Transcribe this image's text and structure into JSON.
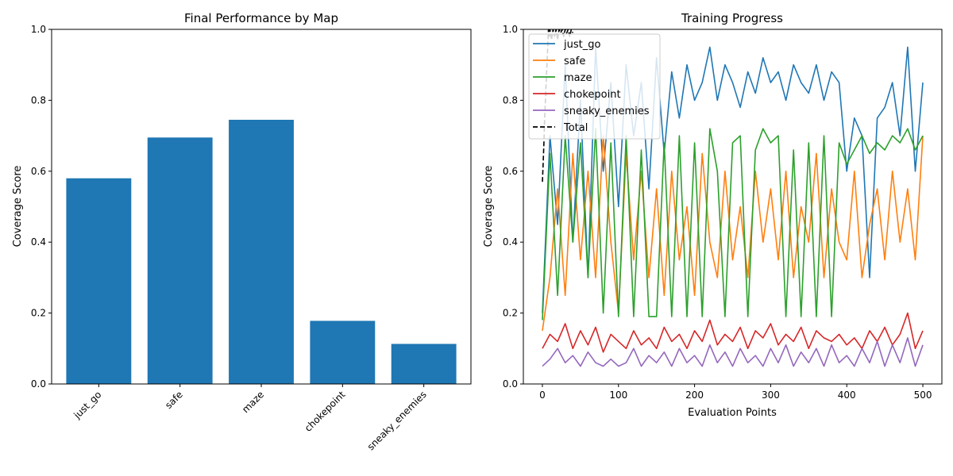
{
  "chart_data": [
    {
      "type": "bar",
      "title": "Final Performance by Map",
      "xlabel": "",
      "ylabel": "Coverage Score",
      "categories": [
        "just_go",
        "safe",
        "maze",
        "chokepoint",
        "sneaky_enemies"
      ],
      "values": [
        0.58,
        0.695,
        0.745,
        0.178,
        0.113
      ],
      "ylim": [
        0,
        1.0
      ],
      "yticks": [
        "0.0",
        "0.2",
        "0.4",
        "0.6",
        "0.8",
        "1.0"
      ],
      "bar_color": "#1f77b4",
      "grid": false
    },
    {
      "type": "line",
      "title": "Training Progress",
      "xlabel": "Evaluation Points",
      "ylabel": "Coverage Score",
      "xlim": [
        -25,
        525
      ],
      "ylim": [
        0,
        1.0
      ],
      "xticks": [
        "0",
        "100",
        "200",
        "300",
        "400",
        "500"
      ],
      "yticks": [
        "0.0",
        "0.2",
        "0.4",
        "0.6",
        "0.8",
        "1.0"
      ],
      "legend_position": "top-left",
      "grid": false,
      "series": [
        {
          "name": "just_go",
          "color": "#1f77b4",
          "style": "solid",
          "x": [
            0,
            10,
            20,
            30,
            40,
            50,
            60,
            70,
            80,
            90,
            100,
            110,
            120,
            130,
            140,
            150,
            160,
            170,
            180,
            190,
            200,
            210,
            220,
            230,
            240,
            250,
            260,
            270,
            280,
            290,
            300,
            310,
            320,
            330,
            340,
            350,
            360,
            370,
            380,
            390,
            400,
            410,
            420,
            430,
            440,
            450,
            460,
            470,
            480,
            490,
            500
          ],
          "y": [
            0.2,
            0.7,
            0.45,
            0.9,
            0.4,
            0.8,
            0.3,
            0.95,
            0.6,
            0.85,
            0.5,
            0.9,
            0.7,
            0.85,
            0.55,
            0.92,
            0.65,
            0.88,
            0.75,
            0.9,
            0.8,
            0.85,
            0.95,
            0.8,
            0.9,
            0.85,
            0.78,
            0.88,
            0.82,
            0.92,
            0.85,
            0.88,
            0.8,
            0.9,
            0.85,
            0.82,
            0.9,
            0.8,
            0.88,
            0.85,
            0.6,
            0.75,
            0.7,
            0.3,
            0.75,
            0.78,
            0.85,
            0.7,
            0.95,
            0.6,
            0.85
          ]
        },
        {
          "name": "safe",
          "color": "#ff7f0e",
          "style": "solid",
          "x": [
            0,
            10,
            20,
            30,
            40,
            50,
            60,
            70,
            80,
            90,
            100,
            110,
            120,
            130,
            140,
            150,
            160,
            170,
            180,
            190,
            200,
            210,
            220,
            230,
            240,
            250,
            260,
            270,
            280,
            290,
            300,
            310,
            320,
            330,
            340,
            350,
            360,
            370,
            380,
            390,
            400,
            410,
            420,
            430,
            440,
            450,
            460,
            470,
            480,
            490,
            500
          ],
          "y": [
            0.15,
            0.3,
            0.55,
            0.25,
            0.65,
            0.35,
            0.6,
            0.3,
            0.7,
            0.4,
            0.2,
            0.65,
            0.35,
            0.6,
            0.3,
            0.55,
            0.25,
            0.6,
            0.35,
            0.5,
            0.25,
            0.65,
            0.4,
            0.3,
            0.6,
            0.35,
            0.5,
            0.3,
            0.6,
            0.4,
            0.55,
            0.35,
            0.6,
            0.3,
            0.5,
            0.4,
            0.65,
            0.3,
            0.55,
            0.4,
            0.35,
            0.6,
            0.3,
            0.45,
            0.55,
            0.35,
            0.6,
            0.4,
            0.55,
            0.35,
            0.7
          ]
        },
        {
          "name": "maze",
          "color": "#2ca02c",
          "style": "solid",
          "x": [
            0,
            10,
            20,
            30,
            40,
            50,
            60,
            70,
            80,
            90,
            100,
            110,
            120,
            130,
            140,
            150,
            160,
            170,
            180,
            190,
            200,
            210,
            220,
            230,
            240,
            250,
            260,
            270,
            280,
            290,
            300,
            310,
            320,
            330,
            340,
            350,
            360,
            370,
            380,
            390,
            400,
            410,
            420,
            430,
            440,
            450,
            460,
            470,
            480,
            490,
            500
          ],
          "y": [
            0.18,
            0.65,
            0.25,
            0.7,
            0.4,
            0.68,
            0.3,
            0.72,
            0.2,
            0.68,
            0.19,
            0.7,
            0.19,
            0.66,
            0.19,
            0.19,
            0.68,
            0.19,
            0.7,
            0.19,
            0.68,
            0.19,
            0.72,
            0.6,
            0.19,
            0.68,
            0.7,
            0.19,
            0.66,
            0.72,
            0.68,
            0.7,
            0.19,
            0.66,
            0.19,
            0.68,
            0.19,
            0.7,
            0.19,
            0.68,
            0.62,
            0.66,
            0.7,
            0.65,
            0.68,
            0.66,
            0.7,
            0.68,
            0.72,
            0.66,
            0.7
          ]
        },
        {
          "name": "chokepoint",
          "color": "#d62728",
          "style": "solid",
          "x": [
            0,
            10,
            20,
            30,
            40,
            50,
            60,
            70,
            80,
            90,
            100,
            110,
            120,
            130,
            140,
            150,
            160,
            170,
            180,
            190,
            200,
            210,
            220,
            230,
            240,
            250,
            260,
            270,
            280,
            290,
            300,
            310,
            320,
            330,
            340,
            350,
            360,
            370,
            380,
            390,
            400,
            410,
            420,
            430,
            440,
            450,
            460,
            470,
            480,
            490,
            500
          ],
          "y": [
            0.1,
            0.14,
            0.12,
            0.17,
            0.1,
            0.15,
            0.11,
            0.16,
            0.09,
            0.14,
            0.12,
            0.1,
            0.15,
            0.11,
            0.13,
            0.1,
            0.16,
            0.12,
            0.14,
            0.1,
            0.15,
            0.12,
            0.18,
            0.11,
            0.14,
            0.12,
            0.16,
            0.1,
            0.15,
            0.13,
            0.17,
            0.11,
            0.14,
            0.12,
            0.16,
            0.1,
            0.15,
            0.13,
            0.12,
            0.14,
            0.11,
            0.13,
            0.1,
            0.15,
            0.12,
            0.16,
            0.11,
            0.14,
            0.2,
            0.1,
            0.15
          ]
        },
        {
          "name": "sneaky_enemies",
          "color": "#9467bd",
          "style": "solid",
          "x": [
            0,
            10,
            20,
            30,
            40,
            50,
            60,
            70,
            80,
            90,
            100,
            110,
            120,
            130,
            140,
            150,
            160,
            170,
            180,
            190,
            200,
            210,
            220,
            230,
            240,
            250,
            260,
            270,
            280,
            290,
            300,
            310,
            320,
            330,
            340,
            350,
            360,
            370,
            380,
            390,
            400,
            410,
            420,
            430,
            440,
            450,
            460,
            470,
            480,
            490,
            500
          ],
          "y": [
            0.05,
            0.07,
            0.1,
            0.06,
            0.08,
            0.05,
            0.09,
            0.06,
            0.05,
            0.07,
            0.05,
            0.06,
            0.1,
            0.05,
            0.08,
            0.06,
            0.09,
            0.05,
            0.1,
            0.06,
            0.08,
            0.05,
            0.11,
            0.06,
            0.09,
            0.05,
            0.1,
            0.06,
            0.08,
            0.05,
            0.1,
            0.06,
            0.11,
            0.05,
            0.09,
            0.06,
            0.1,
            0.05,
            0.11,
            0.06,
            0.08,
            0.05,
            0.1,
            0.06,
            0.12,
            0.05,
            0.11,
            0.06,
            0.13,
            0.05,
            0.11
          ]
        },
        {
          "name": "Total",
          "color": "#000000",
          "style": "dashed",
          "x": [
            0,
            1,
            2,
            3,
            4,
            5,
            6,
            7,
            8,
            9,
            10,
            12,
            14,
            16,
            18,
            20,
            22,
            24,
            26,
            28,
            30,
            32,
            34,
            36,
            38,
            40
          ],
          "y": [
            0.57,
            0.62,
            0.68,
            0.75,
            0.8,
            0.85,
            0.9,
            0.95,
            1.0,
            0.98,
            1.0,
            0.97,
            1.0,
            0.98,
            1.0,
            0.97,
            1.0,
            0.99,
            1.0,
            0.98,
            1.0,
            0.99,
            1.0,
            0.98,
            1.0,
            0.99
          ]
        }
      ]
    }
  ]
}
